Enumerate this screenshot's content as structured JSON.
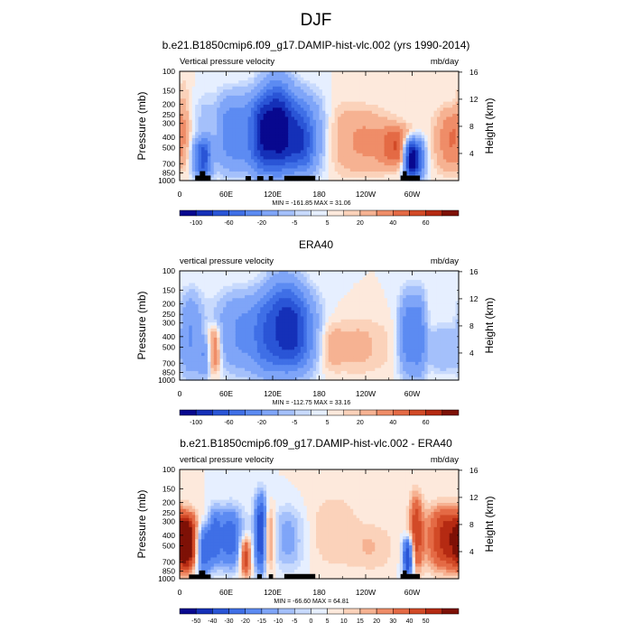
{
  "figure": {
    "title": "DJF",
    "colors": [
      "#08088f",
      "#1530b8",
      "#2a55d6",
      "#3f6fe6",
      "#5c8bf2",
      "#7fa5f8",
      "#a4c0fb",
      "#c8dafd",
      "#e6efff",
      "#fde9dc",
      "#fbd2ba",
      "#f6b292",
      "#ef8d68",
      "#e46a45",
      "#d24a27",
      "#b52a12",
      "#7e1106"
    ]
  },
  "chart_data": [
    {
      "type": "heatmap",
      "title": "b.e21.B1850cmip6.f09_g17.DAMIP-hist-vlc.002 (yrs 1990-2014)",
      "left_label": "Vertical pressure velocity",
      "right_label": "mb/day",
      "ylabel": "Pressure (mb)",
      "y2label": "Height (km)",
      "x_ticks": [
        "0",
        "60E",
        "120E",
        "180",
        "120W",
        "60W"
      ],
      "x_tick_lon": [
        0,
        60,
        120,
        180,
        240,
        300
      ],
      "xlim": [
        0,
        360
      ],
      "y_ticks": [
        "100",
        "150",
        "200",
        "250",
        "300",
        "400",
        "500",
        "700",
        "850",
        "1000"
      ],
      "y_tick_p": [
        100,
        150,
        200,
        250,
        300,
        400,
        500,
        700,
        850,
        1000
      ],
      "ylim": [
        1000,
        100
      ],
      "y2_ticks": [
        "4",
        "8",
        "12",
        "16"
      ],
      "y2_tick_km": [
        4,
        8,
        12,
        16
      ],
      "stats": "MIN = -161.85  MAX = 31.06",
      "colorbar_labels": [
        "-100",
        "-60",
        "-20",
        "-5",
        "5",
        "20",
        "40",
        "60"
      ],
      "colorbar_levels": [
        -120,
        -100,
        -80,
        -60,
        -40,
        -20,
        -10,
        -5,
        0,
        5,
        10,
        20,
        30,
        40,
        50,
        60
      ],
      "terrain": [
        [
          20,
          40,
          900
        ],
        [
          26,
          33,
          820
        ],
        [
          85,
          92,
          910
        ],
        [
          100,
          108,
          910
        ],
        [
          115,
          120,
          910
        ],
        [
          135,
          175,
          905
        ],
        [
          285,
          310,
          900
        ],
        [
          288,
          293,
          820
        ]
      ],
      "features": [
        {
          "lon": 5,
          "pmin": 100,
          "pmax": 700,
          "amp": 10,
          "w": 7
        },
        {
          "lon": 30,
          "pmin": 400,
          "pmax": 1000,
          "amp": -80,
          "w": 8
        },
        {
          "lon": 45,
          "pmin": 150,
          "pmax": 1000,
          "amp": 14,
          "w": 6
        },
        {
          "lon": 75,
          "pmin": 150,
          "pmax": 900,
          "amp": -55,
          "w": 28
        },
        {
          "lon": 105,
          "pmin": 150,
          "pmax": 1000,
          "amp": -50,
          "w": 9
        },
        {
          "lon": 125,
          "pmin": 100,
          "pmax": 950,
          "amp": -85,
          "w": 14
        },
        {
          "lon": 150,
          "pmin": 150,
          "pmax": 950,
          "amp": -75,
          "w": 22
        },
        {
          "lon": 160,
          "pmin": 250,
          "pmax": 850,
          "amp": -30,
          "w": 10
        },
        {
          "lon": 200,
          "pmin": 150,
          "pmax": 1000,
          "amp": 8,
          "w": 20
        },
        {
          "lon": 240,
          "pmin": 200,
          "pmax": 950,
          "amp": 20,
          "w": 25
        },
        {
          "lon": 280,
          "pmin": 300,
          "pmax": 800,
          "amp": 35,
          "w": 14
        },
        {
          "lon": 298,
          "pmin": 400,
          "pmax": 1000,
          "amp": -120,
          "w": 6
        },
        {
          "lon": 308,
          "pmin": 400,
          "pmax": 1000,
          "amp": -70,
          "w": 6
        },
        {
          "lon": 350,
          "pmin": 200,
          "pmax": 900,
          "amp": 30,
          "w": 14
        }
      ]
    },
    {
      "type": "heatmap",
      "title": "ERA40",
      "left_label": "vertical pressure velocity",
      "right_label": "mb/day",
      "ylabel": "Pressure (mb)",
      "y2label": "Height (km)",
      "x_ticks": [
        "0",
        "60E",
        "120E",
        "180",
        "120W",
        "60W"
      ],
      "x_tick_lon": [
        0,
        60,
        120,
        180,
        240,
        300
      ],
      "xlim": [
        0,
        360
      ],
      "y_ticks": [
        "100",
        "150",
        "200",
        "250",
        "300",
        "400",
        "500",
        "700",
        "850",
        "1000"
      ],
      "y_tick_p": [
        100,
        150,
        200,
        250,
        300,
        400,
        500,
        700,
        850,
        1000
      ],
      "ylim": [
        1000,
        100
      ],
      "y2_ticks": [
        "4",
        "8",
        "12",
        "16"
      ],
      "y2_tick_km": [
        4,
        8,
        12,
        16
      ],
      "stats": "MIN = -112.75  MAX = 33.16",
      "colorbar_labels": [
        "-100",
        "-60",
        "-20",
        "-5",
        "5",
        "20",
        "40",
        "60"
      ],
      "colorbar_levels": [
        -120,
        -100,
        -80,
        -60,
        -40,
        -20,
        -10,
        -5,
        0,
        5,
        10,
        20,
        30,
        40,
        50,
        60
      ],
      "terrain": [],
      "features": [
        {
          "lon": 15,
          "pmin": 150,
          "pmax": 1000,
          "amp": -40,
          "w": 10
        },
        {
          "lon": 32,
          "pmin": 400,
          "pmax": 1000,
          "amp": -30,
          "w": 5
        },
        {
          "lon": 45,
          "pmin": 300,
          "pmax": 900,
          "amp": 38,
          "w": 6
        },
        {
          "lon": 75,
          "pmin": 150,
          "pmax": 900,
          "amp": -40,
          "w": 20
        },
        {
          "lon": 110,
          "pmin": 150,
          "pmax": 1000,
          "amp": -50,
          "w": 14
        },
        {
          "lon": 135,
          "pmin": 100,
          "pmax": 950,
          "amp": -75,
          "w": 16
        },
        {
          "lon": 155,
          "pmin": 150,
          "pmax": 900,
          "amp": -60,
          "w": 16
        },
        {
          "lon": 195,
          "pmin": 300,
          "pmax": 850,
          "amp": 10,
          "w": 10
        },
        {
          "lon": 230,
          "pmin": 250,
          "pmax": 950,
          "amp": 12,
          "w": 30
        },
        {
          "lon": 295,
          "pmin": 150,
          "pmax": 1000,
          "amp": -55,
          "w": 8
        },
        {
          "lon": 310,
          "pmin": 150,
          "pmax": 1000,
          "amp": -45,
          "w": 6
        },
        {
          "lon": 340,
          "pmin": 300,
          "pmax": 900,
          "amp": -20,
          "w": 14
        }
      ]
    },
    {
      "type": "heatmap",
      "title": "b.e21.B1850cmip6.f09_g17.DAMIP-hist-vlc.002 - ERA40",
      "left_label": "vertical pressure velocity",
      "right_label": "mb/day",
      "ylabel": "Pressure (mb)",
      "y2label": "Height (km)",
      "x_ticks": [
        "0",
        "60E",
        "120E",
        "180",
        "120W",
        "60W"
      ],
      "x_tick_lon": [
        0,
        60,
        120,
        180,
        240,
        300
      ],
      "xlim": [
        0,
        360
      ],
      "y_ticks": [
        "100",
        "150",
        "200",
        "250",
        "300",
        "400",
        "500",
        "700",
        "850",
        "1000"
      ],
      "y_tick_p": [
        100,
        150,
        200,
        250,
        300,
        400,
        500,
        700,
        850,
        1000
      ],
      "ylim": [
        1000,
        100
      ],
      "y2_ticks": [
        "4",
        "8",
        "12",
        "16"
      ],
      "y2_tick_km": [
        4,
        8,
        12,
        16
      ],
      "stats": "MIN = -66.60  MAX = 64.81",
      "colorbar_labels": [
        "-50",
        "-40",
        "-30",
        "-20",
        "-15",
        "-10",
        "-5",
        "0",
        "5",
        "10",
        "15",
        "20",
        "30",
        "40",
        "50"
      ],
      "colorbar_levels": [
        -60,
        -50,
        -40,
        -30,
        -20,
        -15,
        -10,
        -5,
        0,
        5,
        10,
        15,
        20,
        30,
        40,
        50
      ],
      "terrain": [
        [
          12,
          40,
          915
        ],
        [
          25,
          33,
          840
        ],
        [
          100,
          106,
          910
        ],
        [
          115,
          120,
          910
        ],
        [
          135,
          175,
          905
        ],
        [
          285,
          310,
          905
        ],
        [
          288,
          293,
          840
        ]
      ],
      "features": [
        {
          "lon": 10,
          "pmin": 250,
          "pmax": 900,
          "amp": 55,
          "w": 10
        },
        {
          "lon": 30,
          "pmin": 300,
          "pmax": 1000,
          "amp": -40,
          "w": 8
        },
        {
          "lon": 45,
          "pmin": 200,
          "pmax": 800,
          "amp": -25,
          "w": 6
        },
        {
          "lon": 65,
          "pmin": 200,
          "pmax": 900,
          "amp": -35,
          "w": 12
        },
        {
          "lon": 85,
          "pmin": 400,
          "pmax": 1000,
          "amp": 40,
          "w": 5
        },
        {
          "lon": 105,
          "pmin": 150,
          "pmax": 1000,
          "amp": -50,
          "w": 6
        },
        {
          "lon": 115,
          "pmin": 200,
          "pmax": 900,
          "amp": 30,
          "w": 5
        },
        {
          "lon": 140,
          "pmin": 200,
          "pmax": 900,
          "amp": -18,
          "w": 15
        },
        {
          "lon": 200,
          "pmin": 150,
          "pmax": 900,
          "amp": 9,
          "w": 25
        },
        {
          "lon": 250,
          "pmin": 300,
          "pmax": 900,
          "amp": 9,
          "w": 20
        },
        {
          "lon": 295,
          "pmin": 400,
          "pmax": 1000,
          "amp": -55,
          "w": 5
        },
        {
          "lon": 305,
          "pmin": 150,
          "pmax": 950,
          "amp": 35,
          "w": 6
        },
        {
          "lon": 345,
          "pmin": 200,
          "pmax": 900,
          "amp": 45,
          "w": 18
        }
      ]
    }
  ]
}
